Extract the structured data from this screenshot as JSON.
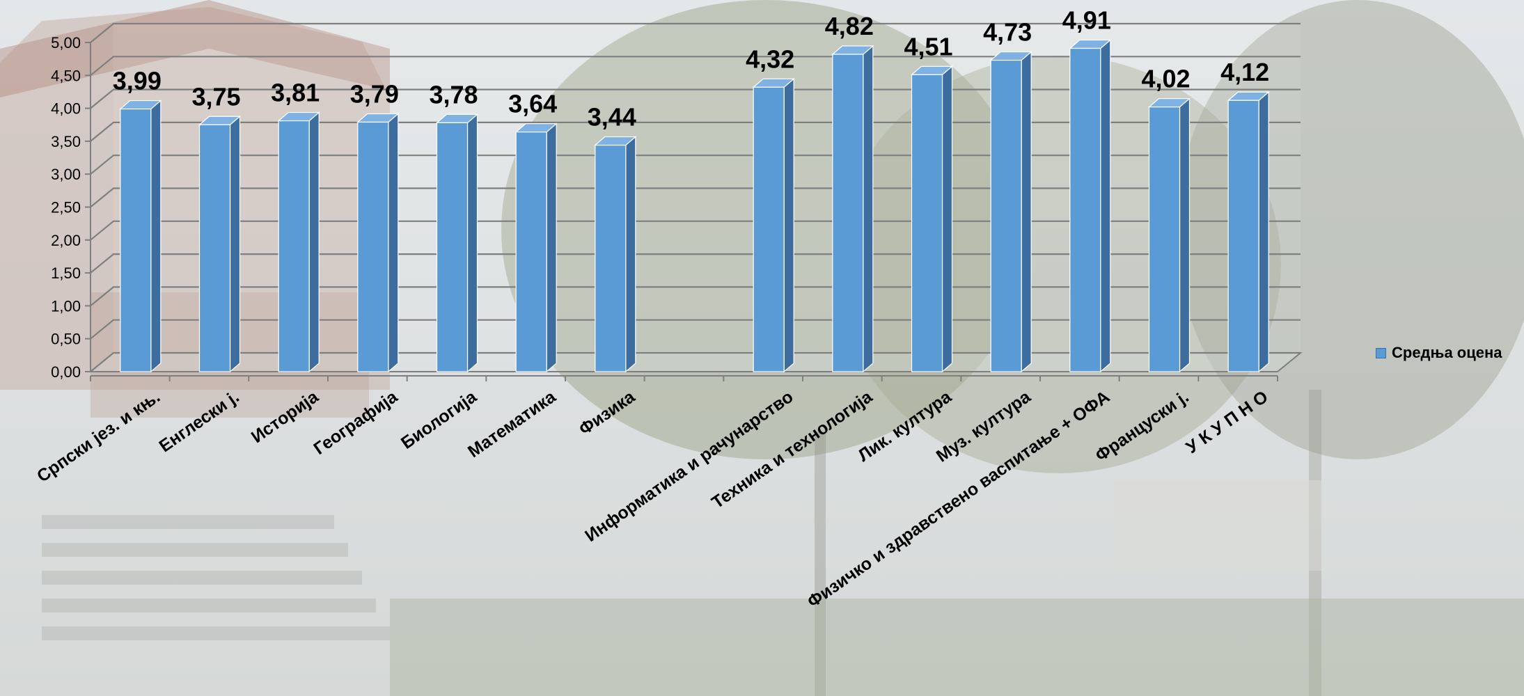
{
  "chart_data": {
    "type": "bar",
    "style": "3d-column",
    "categories": [
      "Српски јез. и књ.",
      "Енглески ј.",
      "Историја",
      "Географија",
      "Биологија",
      "Математика",
      "Физика",
      "",
      "Информатика и рачунарство",
      "Техника и технологија",
      "Лик. култура",
      "Муз. култура",
      "Физичко  и здравствено васпитање + ОФА",
      "Француски ј.",
      "У К У П Н О"
    ],
    "series": [
      {
        "name": "Средња оцена",
        "color": "#5b9bd5",
        "values": [
          3.99,
          3.75,
          3.81,
          3.79,
          3.78,
          3.64,
          3.44,
          null,
          4.32,
          4.82,
          4.51,
          4.73,
          4.91,
          4.02,
          4.12
        ],
        "data_labels": [
          "3,99",
          "3,75",
          "3,81",
          "3,79",
          "3,78",
          "3,64",
          "3,44",
          "",
          "4,32",
          "4,82",
          "4,51",
          "4,73",
          "4,91",
          "4,02",
          "4,12"
        ]
      }
    ],
    "yticks": [
      "0,00",
      "0,50",
      "1,00",
      "1,50",
      "2,00",
      "2,50",
      "3,00",
      "3,50",
      "4,00",
      "4,50",
      "5,00"
    ],
    "ylim": [
      0,
      5
    ],
    "ystep": 0.5,
    "grid": true,
    "legend_position": "right",
    "title": "",
    "xlabel": "",
    "ylabel": ""
  },
  "legend": {
    "label": "Средња оцена",
    "color": "#5b9bd5"
  }
}
